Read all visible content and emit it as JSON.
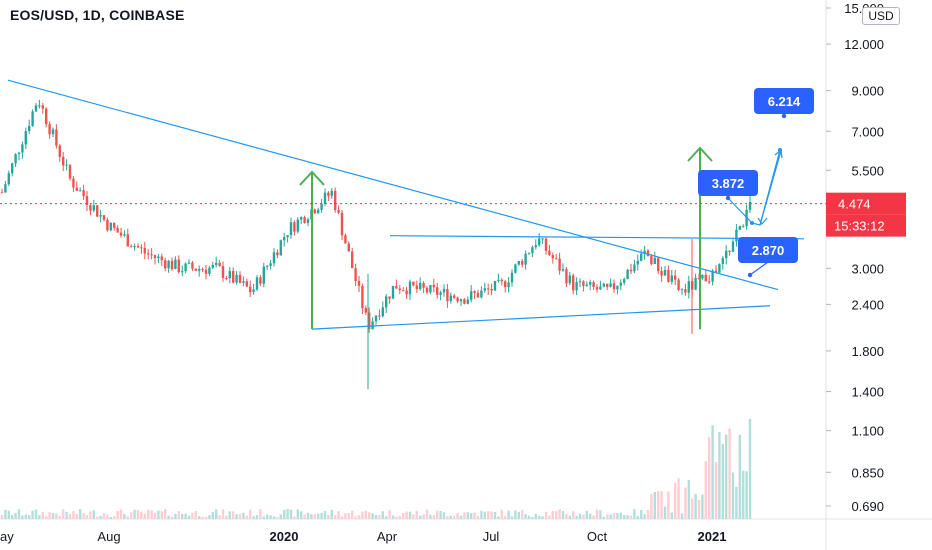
{
  "header": {
    "symbol_title": "EOS/USD, 1D, COINBASE",
    "currency_badge": "USD"
  },
  "colors": {
    "up": "#26a69a",
    "down": "#ef5350",
    "trendline": "#2196f3",
    "arrow": "#4caf50",
    "callout": "#2962ff",
    "price_line": "#f23645",
    "axis_text": "#131722",
    "volume_up": "#b2dfdb",
    "volume_down": "#ffcdd2"
  },
  "chart_data": {
    "type": "candlestick",
    "title": "EOS/USD, 1D, COINBASE",
    "scale": "log",
    "y_ticks": [
      "15.000",
      "12.000",
      "9.000",
      "7.000",
      "5.500",
      "4.474",
      "3.000",
      "2.400",
      "1.800",
      "1.400",
      "1.100",
      "0.850",
      "0.690"
    ],
    "y_tick_values": [
      15,
      12,
      9,
      7,
      5.5,
      3,
      2.4,
      1.8,
      1.4,
      1.1,
      0.85,
      0.69
    ],
    "x_ticks": [
      "ay",
      "Aug",
      "2020",
      "Apr",
      "Jul",
      "Oct",
      "2021"
    ],
    "x_ticks_bold": [
      "2020",
      "2021"
    ],
    "last_price": {
      "value": "4.474",
      "countdown": "15:33:12"
    },
    "series": [
      {
        "date": "2019-05",
        "close": 4.8
      },
      {
        "date": "2019-06",
        "close": 8.6
      },
      {
        "date": "2019-07",
        "close": 5.2
      },
      {
        "date": "2019-08",
        "close": 3.9
      },
      {
        "date": "2019-09",
        "close": 3.3
      },
      {
        "date": "2019-10",
        "close": 3.0
      },
      {
        "date": "2019-11",
        "close": 3.0
      },
      {
        "date": "2019-12",
        "close": 2.6
      },
      {
        "date": "2020-01",
        "close": 3.8
      },
      {
        "date": "2020-02",
        "close": 4.8
      },
      {
        "date": "2020-03",
        "close": 2.1
      },
      {
        "date": "2020-04",
        "close": 2.7
      },
      {
        "date": "2020-05",
        "close": 2.6
      },
      {
        "date": "2020-06",
        "close": 2.5
      },
      {
        "date": "2020-07",
        "close": 2.7
      },
      {
        "date": "2020-08",
        "close": 3.6
      },
      {
        "date": "2020-09",
        "close": 2.7
      },
      {
        "date": "2020-10",
        "close": 2.6
      },
      {
        "date": "2020-11",
        "close": 3.3
      },
      {
        "date": "2020-12",
        "close": 2.6
      },
      {
        "date": "2021-01",
        "close": 2.9
      },
      {
        "date": "2021-02",
        "close": 4.474
      }
    ],
    "annotations": [
      {
        "label": "3.872",
        "value": 3.872
      },
      {
        "label": "2.870",
        "value": 2.87
      },
      {
        "label": "6.214",
        "value": 6.214
      }
    ]
  }
}
